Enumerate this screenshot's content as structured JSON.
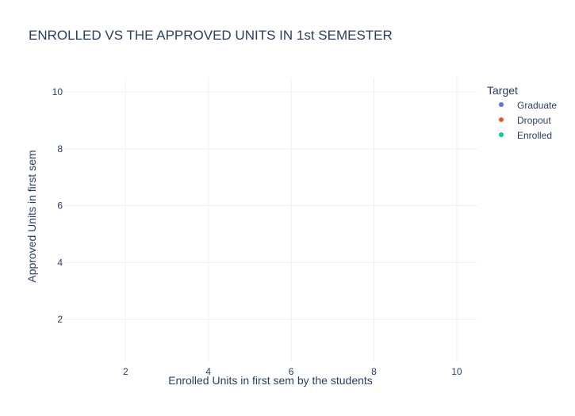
{
  "chart_data": {
    "type": "scatter",
    "title": "ENROLLED VS THE APPROVED UNITS IN 1st SEMESTER",
    "xlabel": "Enrolled Units in first sem by the students",
    "ylabel": "Approved Units in first sem",
    "xlim": [
      0.5,
      10.5
    ],
    "ylim": [
      0.5,
      10.5
    ],
    "xticks": [
      2,
      4,
      6,
      8,
      10
    ],
    "yticks": [
      2,
      4,
      6,
      8,
      10
    ],
    "grid": true,
    "legend": {
      "title": "Target",
      "placement": "top-right",
      "entries": [
        {
          "name": "Graduate",
          "color": "#636efa"
        },
        {
          "name": "Dropout",
          "color": "#ef553b"
        },
        {
          "name": "Enrolled",
          "color": "#00cc96"
        }
      ]
    },
    "series": [
      {
        "name": "Graduate",
        "color": "#636efa",
        "points": []
      },
      {
        "name": "Dropout",
        "color": "#ef553b",
        "points": []
      },
      {
        "name": "Enrolled",
        "color": "#00cc96",
        "points": []
      }
    ]
  },
  "colors": {
    "text": "#2a3f5f",
    "grid": "#ebf0f8"
  }
}
